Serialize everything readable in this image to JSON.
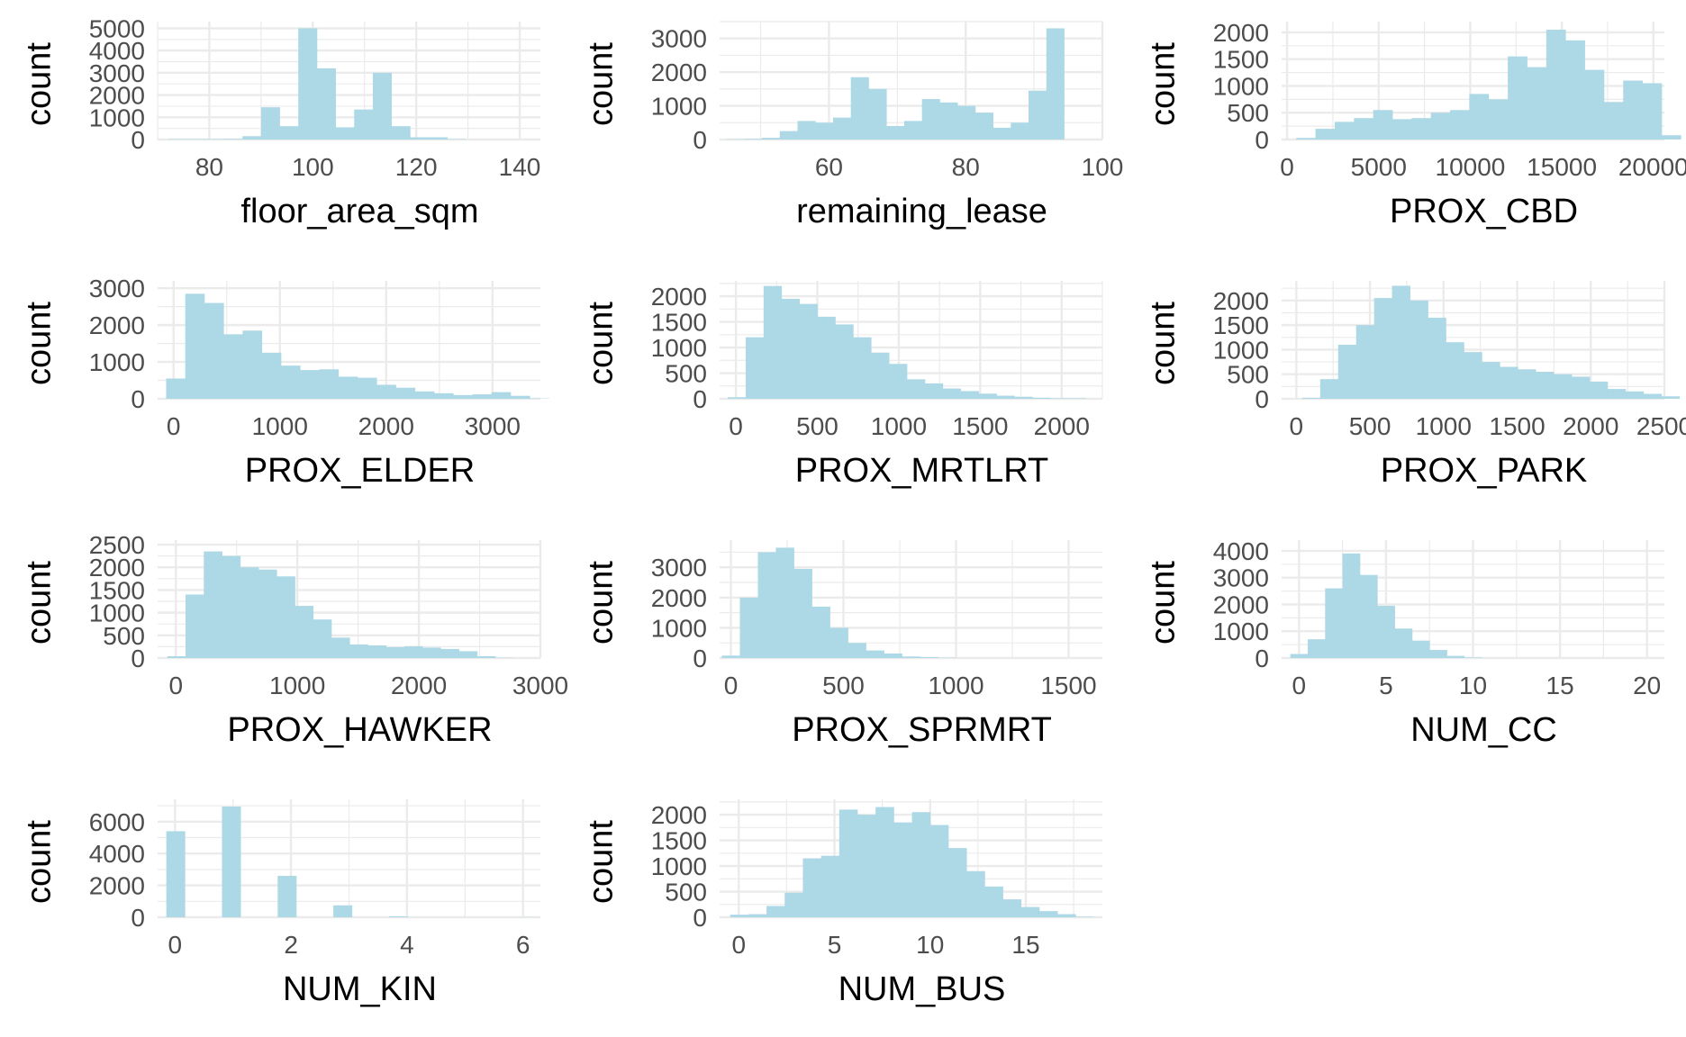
{
  "bar_color": "#add8e6",
  "grid_color": "#ebebeb",
  "chart_data": [
    {
      "type": "bar",
      "xlabel": "floor_area_sqm",
      "ylabel": "count",
      "xlim": [
        70,
        144
      ],
      "ylim": [
        0,
        5300
      ],
      "xticks": [
        80,
        100,
        120,
        140
      ],
      "yticks": [
        0,
        1000,
        2000,
        3000,
        4000,
        5000
      ],
      "x0": 72,
      "binwidth": 3.6,
      "values": [
        20,
        20,
        20,
        30,
        150,
        1450,
        600,
        5000,
        3200,
        550,
        1350,
        3000,
        600,
        100,
        100,
        20,
        0,
        0,
        0,
        0
      ]
    },
    {
      "type": "bar",
      "xlabel": "remaining_lease",
      "ylabel": "count",
      "xlim": [
        44,
        100
      ],
      "ylim": [
        0,
        3500
      ],
      "xticks": [
        60,
        80,
        100
      ],
      "yticks": [
        0,
        1000,
        2000,
        3000
      ],
      "x0": 45,
      "binwidth": 2.6,
      "values": [
        10,
        20,
        50,
        250,
        550,
        500,
        650,
        1850,
        1500,
        400,
        550,
        1200,
        1100,
        1000,
        800,
        350,
        500,
        1450,
        3300
      ]
    },
    {
      "type": "bar",
      "xlabel": "PROX_CBD",
      "ylabel": "count",
      "xlim": [
        -300,
        20600
      ],
      "ylim": [
        0,
        2200
      ],
      "xticks": [
        0,
        5000,
        10000,
        15000,
        20000
      ],
      "tick_labels": [
        "0",
        "5000",
        "10000",
        "15000",
        "20000"
      ],
      "yticks": [
        0,
        500,
        1000,
        1500,
        2000
      ],
      "x0": 500,
      "binwidth": 1050,
      "values": [
        30,
        200,
        330,
        400,
        550,
        380,
        400,
        500,
        550,
        850,
        750,
        1550,
        1350,
        2050,
        1850,
        1300,
        700,
        1100,
        1050,
        80
      ]
    },
    {
      "type": "bar",
      "xlabel": "PROX_ELDER",
      "ylabel": "count",
      "xlim": [
        -150,
        3450
      ],
      "ylim": [
        0,
        3200
      ],
      "xticks": [
        0,
        1000,
        2000,
        3000
      ],
      "yticks": [
        0,
        1000,
        2000,
        3000
      ],
      "x0": -70,
      "binwidth": 180,
      "values": [
        550,
        2850,
        2600,
        1750,
        1850,
        1250,
        900,
        780,
        800,
        600,
        570,
        380,
        300,
        200,
        150,
        100,
        120,
        180,
        80,
        10
      ]
    },
    {
      "type": "bar",
      "xlabel": "PROX_MRTLRT",
      "ylabel": "count",
      "xlim": [
        -100,
        2250
      ],
      "ylim": [
        0,
        2300
      ],
      "xticks": [
        0,
        500,
        1000,
        1500,
        2000
      ],
      "yticks": [
        0,
        500,
        1000,
        1500,
        2000
      ],
      "x0": -50,
      "binwidth": 110,
      "values": [
        30,
        1200,
        2200,
        1950,
        1850,
        1600,
        1450,
        1200,
        900,
        680,
        380,
        300,
        200,
        150,
        100,
        60,
        40,
        20,
        10,
        10
      ]
    },
    {
      "type": "bar",
      "xlabel": "PROX_PARK",
      "ylabel": "count",
      "xlim": [
        -100,
        2500
      ],
      "ylim": [
        0,
        2400
      ],
      "xticks": [
        0,
        500,
        1000,
        1500,
        2000,
        2500
      ],
      "yticks": [
        0,
        500,
        1000,
        1500,
        2000
      ],
      "x0": 40,
      "binwidth": 122,
      "values": [
        20,
        400,
        1100,
        1500,
        2050,
        2300,
        2000,
        1650,
        1150,
        950,
        750,
        650,
        600,
        550,
        500,
        450,
        350,
        200,
        150,
        100,
        50
      ]
    },
    {
      "type": "bar",
      "xlabel": "PROX_HAWKER",
      "ylabel": "count",
      "xlim": [
        -150,
        3000
      ],
      "ylim": [
        0,
        2600
      ],
      "xticks": [
        0,
        1000,
        2000,
        3000
      ],
      "yticks": [
        0,
        500,
        1000,
        1500,
        2000,
        2500
      ],
      "x0": -70,
      "binwidth": 150,
      "values": [
        40,
        1400,
        2350,
        2250,
        2000,
        1950,
        1800,
        1150,
        850,
        450,
        300,
        280,
        240,
        260,
        230,
        200,
        150,
        40,
        5,
        0
      ]
    },
    {
      "type": "bar",
      "xlabel": "PROX_SPRMRT",
      "ylabel": "count",
      "xlim": [
        -50,
        1650
      ],
      "ylim": [
        0,
        3900
      ],
      "xticks": [
        0,
        500,
        1000,
        1500
      ],
      "yticks": [
        0,
        1000,
        2000,
        3000
      ],
      "x0": -40,
      "binwidth": 80,
      "values": [
        80,
        2000,
        3500,
        3650,
        2950,
        1700,
        1000,
        500,
        250,
        150,
        50,
        30,
        10,
        0,
        0,
        0,
        0,
        0,
        0,
        0
      ]
    },
    {
      "type": "bar",
      "xlabel": "NUM_CC",
      "ylabel": "count",
      "xlim": [
        -1,
        21
      ],
      "ylim": [
        0,
        4400
      ],
      "xticks": [
        0,
        5,
        10,
        15,
        20
      ],
      "yticks": [
        0,
        1000,
        2000,
        3000,
        4000
      ],
      "x0": -0.5,
      "binwidth": 1,
      "values": [
        150,
        700,
        2600,
        3900,
        3100,
        1950,
        1100,
        650,
        300,
        80,
        20,
        0,
        0,
        0,
        0,
        0,
        0,
        0,
        0,
        0,
        0
      ]
    },
    {
      "type": "bar",
      "xlabel": "NUM_KIN",
      "ylabel": "count",
      "xlim": [
        -0.3,
        6.3
      ],
      "ylim": [
        0,
        7400
      ],
      "xticks": [
        0,
        2,
        4,
        6
      ],
      "yticks": [
        0,
        2000,
        4000,
        6000
      ],
      "x0": -0.15,
      "binwidth": 0.32,
      "values": [
        5400,
        0,
        0,
        6950,
        0,
        0,
        2600,
        0,
        0,
        750,
        0,
        0,
        60,
        0,
        0,
        0,
        0,
        0,
        0,
        10
      ]
    },
    {
      "type": "bar",
      "xlabel": "NUM_BUS",
      "ylabel": "count",
      "xlim": [
        -1,
        19
      ],
      "ylim": [
        0,
        2300
      ],
      "xticks": [
        0,
        5,
        10,
        15
      ],
      "yticks": [
        0,
        500,
        1000,
        1500,
        2000
      ],
      "x0": -0.45,
      "binwidth": 0.95,
      "values": [
        50,
        60,
        220,
        480,
        1150,
        1200,
        2100,
        2000,
        2150,
        1850,
        2050,
        1800,
        1350,
        900,
        600,
        350,
        200,
        120,
        60,
        10
      ]
    }
  ]
}
